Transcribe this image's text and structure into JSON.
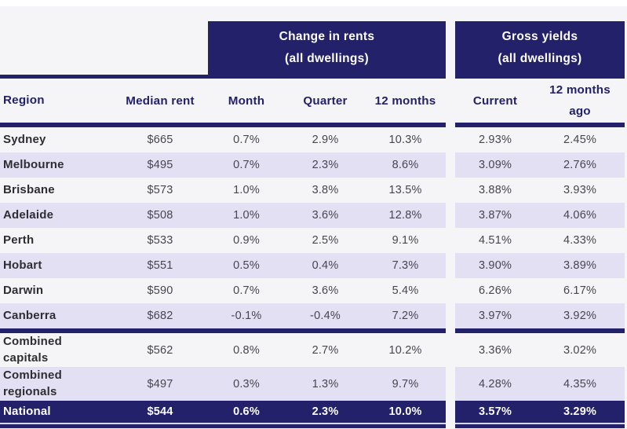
{
  "colors": {
    "navy": "#232169",
    "stripe": "#e3e0f4",
    "background": "#f5f4f6",
    "body_text": "#47464f",
    "region_text": "#2e2d33",
    "national_text": "#ffffff"
  },
  "table": {
    "group_headers": [
      {
        "title": "Change in rents",
        "subtitle": "(all dwellings)"
      },
      {
        "title": "Gross yields",
        "subtitle": "(all dwellings)"
      }
    ],
    "columns": {
      "region": "Region",
      "median_rent": "Median rent",
      "month": "Month",
      "quarter": "Quarter",
      "twelve_months": "12 months",
      "current": "Current",
      "twelve_months_ago_line1": "12 months",
      "twelve_months_ago_line2": "ago"
    },
    "city_rows": [
      {
        "region": "Sydney",
        "median_rent": "$665",
        "month": "0.7%",
        "quarter": "2.9%",
        "twelve_months": "10.3%",
        "current_yield": "2.93%",
        "yield_12_months_ago": "2.45%"
      },
      {
        "region": "Melbourne",
        "median_rent": "$495",
        "month": "0.7%",
        "quarter": "2.3%",
        "twelve_months": "8.6%",
        "current_yield": "3.09%",
        "yield_12_months_ago": "2.76%"
      },
      {
        "region": "Brisbane",
        "median_rent": "$573",
        "month": "1.0%",
        "quarter": "3.8%",
        "twelve_months": "13.5%",
        "current_yield": "3.88%",
        "yield_12_months_ago": "3.93%"
      },
      {
        "region": "Adelaide",
        "median_rent": "$508",
        "month": "1.0%",
        "quarter": "3.6%",
        "twelve_months": "12.8%",
        "current_yield": "3.87%",
        "yield_12_months_ago": "4.06%"
      },
      {
        "region": "Perth",
        "median_rent": "$533",
        "month": "0.9%",
        "quarter": "2.5%",
        "twelve_months": "9.1%",
        "current_yield": "4.51%",
        "yield_12_months_ago": "4.33%"
      },
      {
        "region": "Hobart",
        "median_rent": "$551",
        "month": "0.5%",
        "quarter": "0.4%",
        "twelve_months": "7.3%",
        "current_yield": "3.90%",
        "yield_12_months_ago": "3.89%"
      },
      {
        "region": "Darwin",
        "median_rent": "$590",
        "month": "0.7%",
        "quarter": "3.6%",
        "twelve_months": "5.4%",
        "current_yield": "6.26%",
        "yield_12_months_ago": "6.17%"
      },
      {
        "region": "Canberra",
        "median_rent": "$682",
        "month": "-0.1%",
        "quarter": "-0.4%",
        "twelve_months": "7.2%",
        "current_yield": "3.97%",
        "yield_12_months_ago": "3.92%"
      }
    ],
    "combined_rows": [
      {
        "region": "Combined\ncapitals",
        "median_rent": "$562",
        "month": "0.8%",
        "quarter": "2.7%",
        "twelve_months": "10.2%",
        "current_yield": "3.36%",
        "yield_12_months_ago": "3.02%"
      },
      {
        "region": "Combined\nregionals",
        "median_rent": "$497",
        "month": "0.3%",
        "quarter": "1.3%",
        "twelve_months": "9.7%",
        "current_yield": "4.28%",
        "yield_12_months_ago": "4.35%"
      }
    ],
    "national_row": {
      "region": "National",
      "median_rent": "$544",
      "month": "0.6%",
      "quarter": "2.3%",
      "twelve_months": "10.0%",
      "current_yield": "3.57%",
      "yield_12_months_ago": "3.29%"
    }
  }
}
